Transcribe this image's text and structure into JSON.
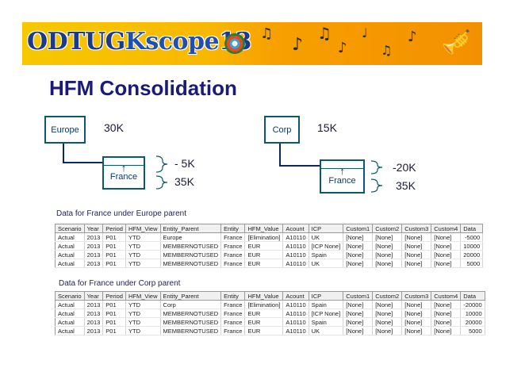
{
  "banner": {
    "logo_main": "ODTUG",
    "logo_kscope": "Kscope",
    "logo_year": "13"
  },
  "page": {
    "title": "HFM Consolidation"
  },
  "diagram_left": {
    "parent": "Europe",
    "parent_value": "30K",
    "child": "France",
    "elimination": "- 5K",
    "child_value": "35K"
  },
  "diagram_right": {
    "parent": "Corp",
    "parent_value": "15K",
    "child": "France",
    "elimination": "-20K",
    "child_value": "35K"
  },
  "table_headers": [
    "Scenario",
    "Year",
    "Period",
    "HFM_View",
    "Entity_Parent",
    "Entity",
    "HFM_Value",
    "Acount",
    "ICP",
    "Custom1",
    "Custom2",
    "Custom3",
    "Custom4",
    "Data"
  ],
  "table1": {
    "caption": "Data for France under Europe parent",
    "rows": [
      [
        "Actual",
        "2013",
        "P01",
        "YTD",
        "Europe",
        "France",
        "[Elimination]",
        "A10110",
        "UK",
        "[None]",
        "[None]",
        "[None]",
        "[None]",
        "-5000"
      ],
      [
        "Actual",
        "2013",
        "P01",
        "YTD",
        "MEMBERNOTUSED",
        "France",
        "EUR",
        "A10110",
        "[ICP None]",
        "[None]",
        "[None]",
        "[None]",
        "[None]",
        "10000"
      ],
      [
        "Actual",
        "2013",
        "P01",
        "YTD",
        "MEMBERNOTUSED",
        "France",
        "EUR",
        "A10110",
        "Spain",
        "[None]",
        "[None]",
        "[None]",
        "[None]",
        "20000"
      ],
      [
        "Actual",
        "2013",
        "P01",
        "YTD",
        "MEMBERNOTUSED",
        "France",
        "EUR",
        "A10110",
        "UK",
        "[None]",
        "[None]",
        "[None]",
        "[None]",
        "5000"
      ]
    ]
  },
  "table2": {
    "caption": "Data for France under Corp parent",
    "rows": [
      [
        "Actual",
        "2013",
        "P01",
        "YTD",
        "Corp",
        "France",
        "[Elimination]",
        "A10110",
        "Spain",
        "[None]",
        "[None]",
        "[None]",
        "[None]",
        "-20000"
      ],
      [
        "Actual",
        "2013",
        "P01",
        "YTD",
        "MEMBERNOTUSED",
        "France",
        "EUR",
        "A10110",
        "[ICP None]",
        "[None]",
        "[None]",
        "[None]",
        "[None]",
        "10000"
      ],
      [
        "Actual",
        "2013",
        "P01",
        "YTD",
        "MEMBERNOTUSED",
        "France",
        "EUR",
        "A10110",
        "Spain",
        "[None]",
        "[None]",
        "[None]",
        "[None]",
        "20000"
      ],
      [
        "Actual",
        "2013",
        "P01",
        "YTD",
        "MEMBERNOTUSED",
        "France",
        "EUR",
        "A10110",
        "UK",
        "[None]",
        "[None]",
        "[None]",
        "[None]",
        "5000"
      ]
    ]
  },
  "colors": {
    "title": "#1a1a78",
    "node_border": "#0b5a6b",
    "banner_start": "#f6c800",
    "banner_end": "#f39000"
  },
  "icons": [
    "music-note-icon",
    "trumpet-icon",
    "sun-logo-icon",
    "up-arrow-icon"
  ]
}
